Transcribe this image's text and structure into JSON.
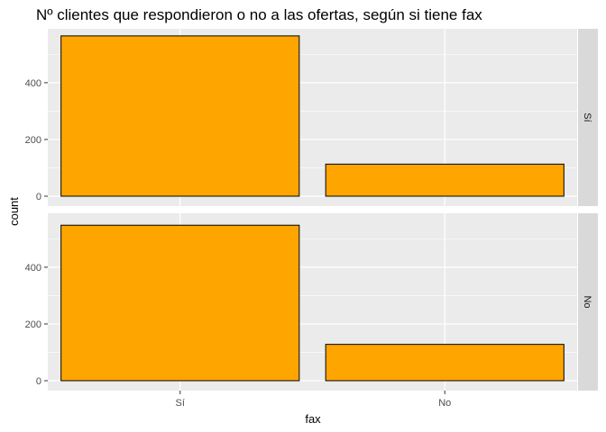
{
  "chart_data": {
    "type": "bar",
    "title": "Nº clientes que respondieron o no a las ofertas, según si tiene  fax",
    "xlabel": "fax",
    "ylabel": "count",
    "categories": [
      "Sí",
      "No"
    ],
    "ylim": [
      0,
      590
    ],
    "yticks": [
      0,
      200,
      400
    ],
    "grid": true,
    "bar_color": "#FFA500",
    "bar_border": "#000000",
    "panel_bg": "#EBEBEB",
    "strip_bg": "#D9D9D9",
    "facets": [
      {
        "label": "Sí",
        "values": [
          565,
          113
        ]
      },
      {
        "label": "No",
        "values": [
          548,
          128
        ]
      }
    ]
  }
}
